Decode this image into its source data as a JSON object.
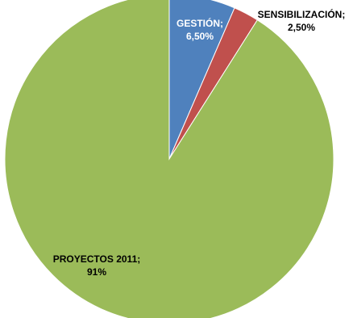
{
  "chart_data": {
    "type": "pie",
    "title": "",
    "start_angle_deg": 0,
    "direction": "clockwise",
    "legend": "none",
    "slices": [
      {
        "name": "GESTIÓN",
        "value": 6.5,
        "value_label": "6,50%",
        "color": "#4f81bd",
        "label_color": "#ffffff"
      },
      {
        "name": "SENSIBILIZACIÓN",
        "value": 2.5,
        "value_label": "2,50%",
        "color": "#c0504d",
        "label_color": "#000000"
      },
      {
        "name": "PROYECTOS 2011",
        "value": 91,
        "value_label": "91%",
        "color": "#9bbb59",
        "label_color": "#000000"
      }
    ]
  }
}
